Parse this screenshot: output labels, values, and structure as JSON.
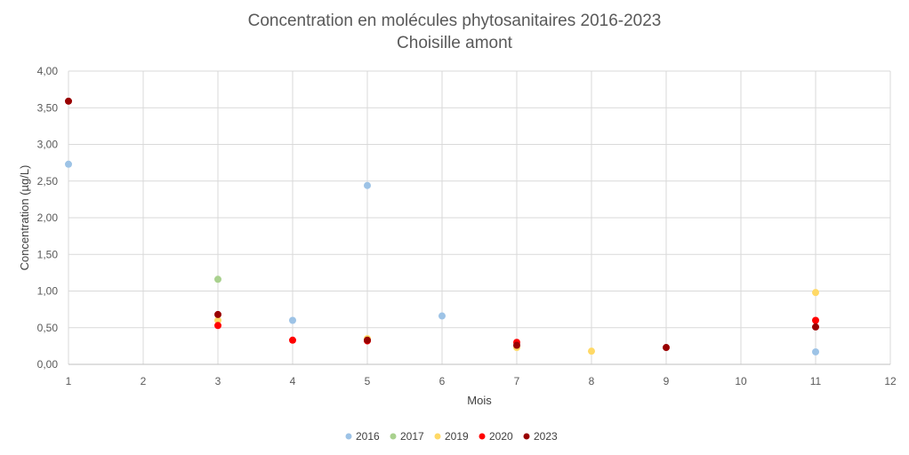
{
  "chart_data": {
    "type": "scatter",
    "title": "Concentration en molécules phytosanitaires 2016-2023",
    "subtitle": "Choisille amont",
    "xlabel": "Mois",
    "ylabel": "Concentration (µg/L)",
    "xlim": [
      1,
      12
    ],
    "ylim": [
      0,
      4
    ],
    "x_ticks": [
      "1",
      "2",
      "3",
      "4",
      "5",
      "6",
      "7",
      "8",
      "9",
      "10",
      "11",
      "12"
    ],
    "y_ticks": [
      "0,00",
      "0,50",
      "1,00",
      "1,50",
      "2,00",
      "2,50",
      "3,00",
      "3,50",
      "4,00"
    ],
    "grid": true,
    "legend_position": "bottom",
    "series": [
      {
        "name": "2016",
        "color": "#9dc3e6",
        "points": [
          [
            1,
            2.73
          ],
          [
            4,
            0.6
          ],
          [
            5,
            2.44
          ],
          [
            6,
            0.66
          ],
          [
            11,
            0.17
          ]
        ]
      },
      {
        "name": "2017",
        "color": "#a9d18e",
        "points": [
          [
            3,
            1.16
          ]
        ]
      },
      {
        "name": "2019",
        "color": "#ffd966",
        "points": [
          [
            3,
            0.6
          ],
          [
            5,
            0.35
          ],
          [
            7,
            0.23
          ],
          [
            8,
            0.18
          ],
          [
            11,
            0.98
          ]
        ]
      },
      {
        "name": "2020",
        "color": "#ff0000",
        "points": [
          [
            3,
            0.53
          ],
          [
            4,
            0.33
          ],
          [
            5,
            0.32
          ],
          [
            7,
            0.3
          ],
          [
            11,
            0.6
          ]
        ]
      },
      {
        "name": "2023",
        "color": "#990000",
        "points": [
          [
            1,
            3.59
          ],
          [
            3,
            0.68
          ],
          [
            5,
            0.33
          ],
          [
            7,
            0.26
          ],
          [
            9,
            0.23
          ],
          [
            11,
            0.51
          ]
        ]
      }
    ]
  }
}
